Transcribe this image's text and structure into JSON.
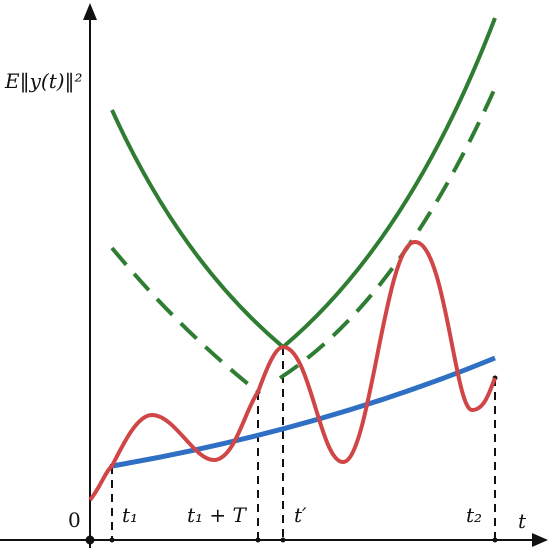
{
  "y_axis_label": "E‖y(t)‖²",
  "x_axis_label": "t",
  "origin_label": "0",
  "tick_labels": [
    "t₁",
    "t₁ + T",
    "t′",
    "t₂"
  ]
}
